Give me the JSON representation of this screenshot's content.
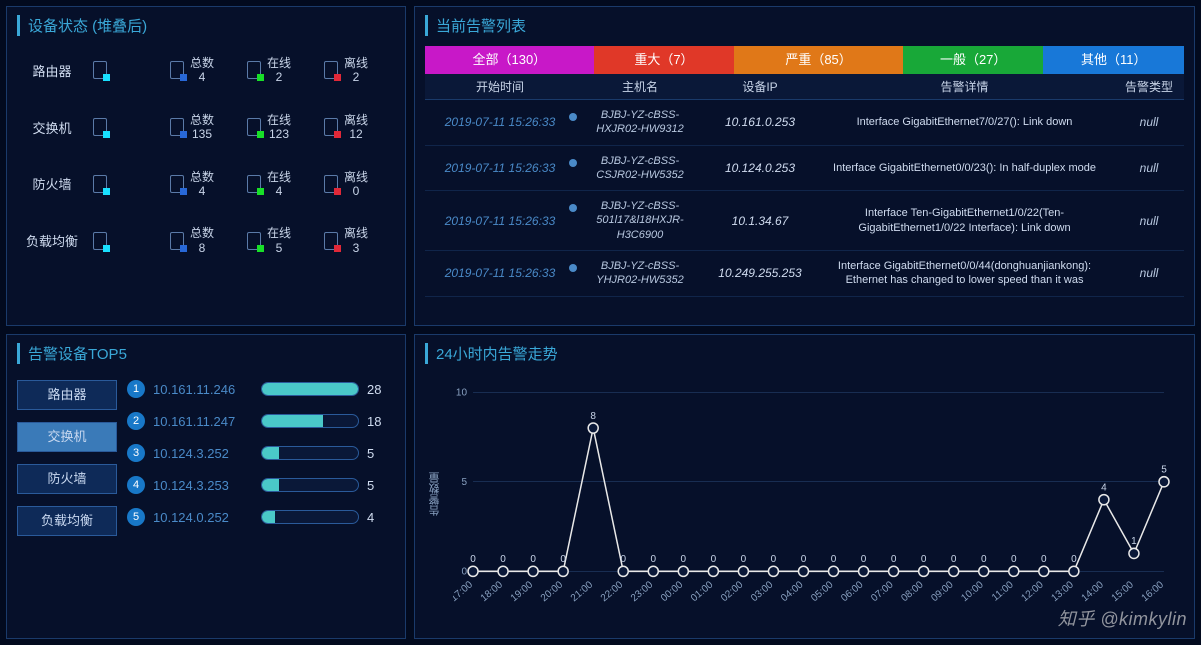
{
  "device_status": {
    "title": "设备状态 (堆叠后)",
    "col_labels": {
      "total": "总数",
      "online": "在线",
      "offline": "离线"
    },
    "rows": [
      {
        "name": "路由器",
        "total": 4,
        "online": 2,
        "offline": 2
      },
      {
        "name": "交换机",
        "total": 135,
        "online": 123,
        "offline": 12
      },
      {
        "name": "防火墙",
        "total": 4,
        "online": 4,
        "offline": 0
      },
      {
        "name": "负载均衡",
        "total": 8,
        "online": 5,
        "offline": 3
      }
    ],
    "icon_colors": {
      "name": "#18e0ff",
      "total": "#2868d8",
      "online": "#18e028",
      "offline": "#e02838"
    }
  },
  "alarm_list": {
    "title": "当前告警列表",
    "tabs": [
      {
        "label": "全部（130）",
        "cls": "all"
      },
      {
        "label": "重大（7）",
        "cls": "crit"
      },
      {
        "label": "严重（85）",
        "cls": "serious"
      },
      {
        "label": "一般（27）",
        "cls": "normal"
      },
      {
        "label": "其他（11）",
        "cls": "other"
      }
    ],
    "columns": [
      "开始时间",
      "主机名",
      "设备IP",
      "告警详情",
      "告警类型"
    ],
    "rows": [
      {
        "ts": "2019-07-11 15:26:33",
        "host": "BJBJ-YZ-cBSS-HXJR02-HW9312",
        "ip": "10.161.0.253",
        "detail": "Interface GigabitEthernet7/0/27(): Link down",
        "type": "null"
      },
      {
        "ts": "2019-07-11 15:26:33",
        "host": "BJBJ-YZ-cBSS-CSJR02-HW5352",
        "ip": "10.124.0.253",
        "detail": "Interface GigabitEthernet0/0/23(): In half-duplex mode",
        "type": "null"
      },
      {
        "ts": "2019-07-11 15:26:33",
        "host": "BJBJ-YZ-cBSS-501l17&l18HXJR-H3C6900",
        "ip": "10.1.34.67",
        "detail": "Interface Ten-GigabitEthernet1/0/22(Ten-GigabitEthernet1/0/22 Interface): Link down",
        "type": "null"
      },
      {
        "ts": "2019-07-11 15:26:33",
        "host": "BJBJ-YZ-cBSS-YHJR02-HW5352",
        "ip": "10.249.255.253",
        "detail": "Interface GigabitEthernet0/0/44(donghuanjiankong): Ethernet has changed to lower speed than it was",
        "type": "null"
      }
    ]
  },
  "top5": {
    "title": "告警设备TOP5",
    "buttons": [
      "路由器",
      "交换机",
      "防火墙",
      "负载均衡"
    ],
    "active_index": 1,
    "max": 28,
    "items": [
      {
        "rank": 1,
        "ip": "10.161.11.246",
        "count": 28
      },
      {
        "rank": 2,
        "ip": "10.161.11.247",
        "count": 18
      },
      {
        "rank": 3,
        "ip": "10.124.3.252",
        "count": 5
      },
      {
        "rank": 4,
        "ip": "10.124.3.253",
        "count": 5
      },
      {
        "rank": 5,
        "ip": "10.124.0.252",
        "count": 4
      }
    ],
    "bar_color": "#4ac8c8",
    "rank_bg": "#1878c8"
  },
  "trend": {
    "title": "24小时内告警走势",
    "type": "line",
    "ylabel": "告警数量",
    "ylim": [
      0,
      10
    ],
    "ytick_step": 5,
    "line_color": "#e8e8e8",
    "point_radius": 5,
    "grid_color": "#2a4a7a",
    "background_color": "transparent",
    "x_labels": [
      "17:00",
      "18:00",
      "19:00",
      "20:00",
      "21:00",
      "22:00",
      "23:00",
      "00:00",
      "01:00",
      "02:00",
      "03:00",
      "04:00",
      "05:00",
      "06:00",
      "07:00",
      "08:00",
      "09:00",
      "10:00",
      "11:00",
      "12:00",
      "13:00",
      "14:00",
      "15:00",
      "16:00"
    ],
    "values": [
      0,
      0,
      0,
      0,
      8,
      0,
      0,
      0,
      0,
      0,
      0,
      0,
      0,
      0,
      0,
      0,
      0,
      0,
      0,
      0,
      0,
      4,
      1,
      5
    ],
    "label_fontsize": 10
  },
  "watermark": "知乎 @kimkylin"
}
